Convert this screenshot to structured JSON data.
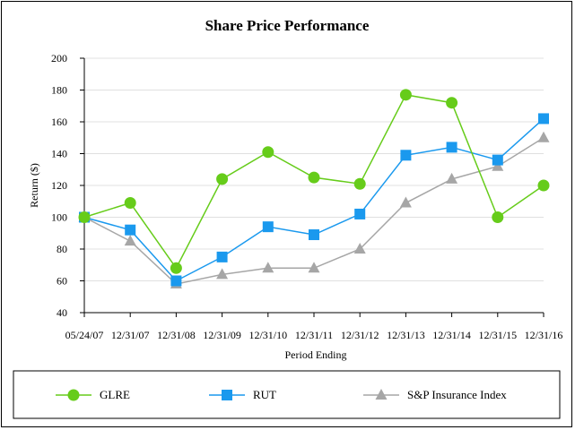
{
  "chart_data": {
    "type": "line",
    "title": "Share Price Performance",
    "xlabel": "Period Ending",
    "ylabel": "Return ($)",
    "ylim": [
      40,
      200
    ],
    "yticks": [
      40,
      60,
      80,
      100,
      120,
      140,
      160,
      180,
      200
    ],
    "grid": true,
    "legend_position": "bottom",
    "categories": [
      "05/24/07",
      "12/31/07",
      "12/31/08",
      "12/31/09",
      "12/31/10",
      "12/31/11",
      "12/31/12",
      "12/31/13",
      "12/31/14",
      "12/31/15",
      "12/31/16"
    ],
    "series": [
      {
        "name": "GLRE",
        "color": "#66cc1a",
        "marker": "circle",
        "values": [
          100,
          109,
          68,
          124,
          141,
          125,
          121,
          177,
          172,
          100,
          120
        ]
      },
      {
        "name": "RUT",
        "color": "#1a99ee",
        "marker": "square",
        "values": [
          100,
          92,
          60,
          75,
          94,
          89,
          102,
          139,
          144,
          136,
          162
        ]
      },
      {
        "name": "S&P Insurance Index",
        "color": "#a6a6a6",
        "marker": "triangle",
        "values": [
          100,
          85,
          58,
          64,
          68,
          68,
          80,
          109,
          124,
          132,
          150
        ]
      }
    ]
  }
}
